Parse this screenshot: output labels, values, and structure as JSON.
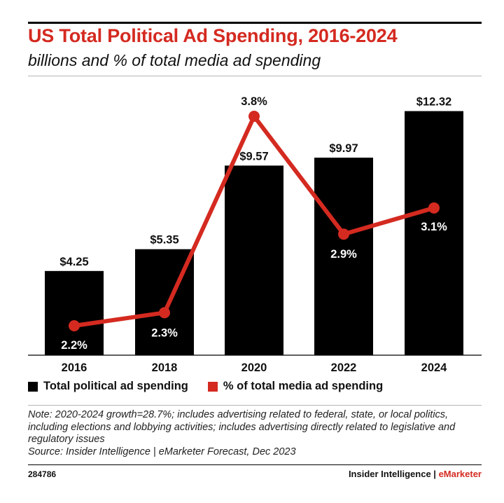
{
  "header": {
    "title": "US Total Political Ad Spending, 2016-2024",
    "subtitle": "billions and % of total media ad spending"
  },
  "chart_data": {
    "type": "bar",
    "categories": [
      "2016",
      "2018",
      "2020",
      "2022",
      "2024"
    ],
    "series": [
      {
        "name": "Total political ad spending",
        "type": "bar",
        "values": [
          4.25,
          5.35,
          9.57,
          9.97,
          12.32
        ],
        "labels": [
          "$4.25",
          "$5.35",
          "$9.57",
          "$9.97",
          "$12.32"
        ],
        "color": "#000000"
      },
      {
        "name": "% of total media ad spending",
        "type": "line",
        "values": [
          2.2,
          2.3,
          3.8,
          2.9,
          3.1
        ],
        "labels": [
          "2.2%",
          "2.3%",
          "3.8%",
          "2.9%",
          "3.1%"
        ],
        "color": "#d42a20"
      }
    ],
    "ylim_bars": [
      0,
      12.5
    ],
    "ylim_line": [
      1.8,
      3.9
    ],
    "grid": false,
    "legend_position": "bottom-left"
  },
  "footer": {
    "note": "Note: 2020-2024 growth=28.7%; includes advertising related to federal, state, or local politics, including elections and lobbying activities; includes advertising directly related to legislative and regulatory issues",
    "source": "Source: Insider Intelligence | eMarketer Forecast, Dec 2023",
    "chart_id": "284786",
    "brand_main": "Insider Intelligence | ",
    "brand_accent": "eMarketer"
  }
}
